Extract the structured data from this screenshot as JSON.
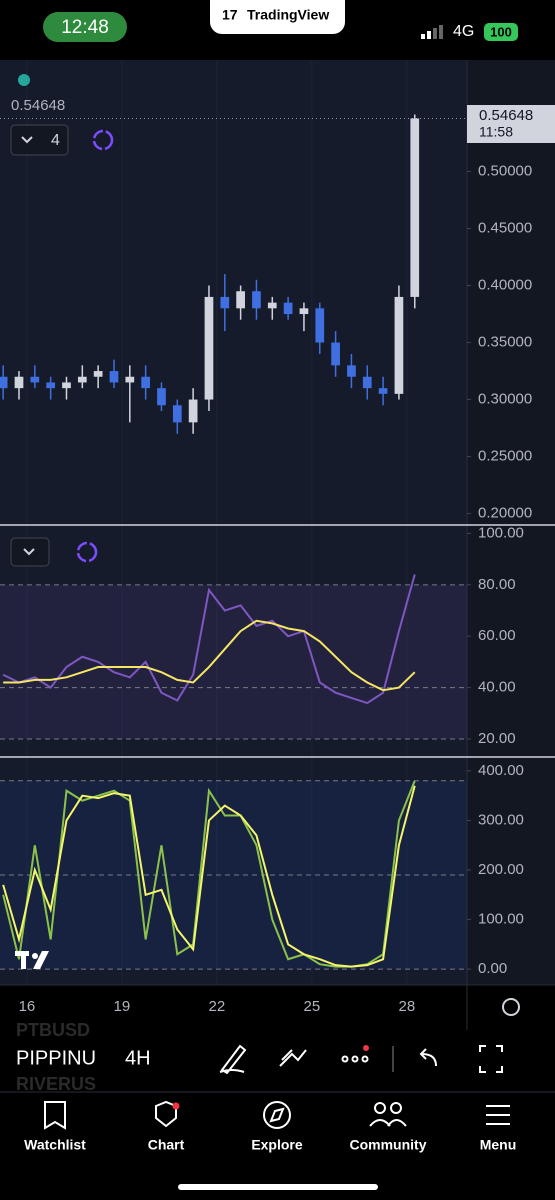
{
  "status": {
    "time": "12:48",
    "brand": "TradingView",
    "network": "4G",
    "battery": "100"
  },
  "chart_data": [
    {
      "type": "candlestick",
      "last_price": 0.54648,
      "countdown": "11:58",
      "interval_count": 4,
      "x": [
        15.25,
        15.75,
        16.25,
        16.75,
        17.25,
        17.75,
        18.25,
        18.75,
        19.25,
        19.75,
        20.25,
        20.75,
        21.25,
        21.75,
        22.25,
        22.75,
        23.25,
        23.75,
        24.25,
        24.75,
        25.25,
        25.75,
        26.25,
        26.75,
        27.25,
        27.75,
        28.25
      ],
      "open": [
        0.32,
        0.31,
        0.32,
        0.315,
        0.31,
        0.315,
        0.32,
        0.325,
        0.315,
        0.32,
        0.31,
        0.295,
        0.28,
        0.3,
        0.39,
        0.38,
        0.395,
        0.38,
        0.385,
        0.375,
        0.38,
        0.35,
        0.33,
        0.32,
        0.31,
        0.305,
        0.39
      ],
      "high": [
        0.33,
        0.325,
        0.33,
        0.32,
        0.32,
        0.33,
        0.33,
        0.335,
        0.33,
        0.33,
        0.315,
        0.3,
        0.31,
        0.4,
        0.41,
        0.4,
        0.405,
        0.39,
        0.39,
        0.385,
        0.385,
        0.36,
        0.34,
        0.33,
        0.32,
        0.4,
        0.55
      ],
      "low": [
        0.3,
        0.3,
        0.31,
        0.3,
        0.3,
        0.31,
        0.31,
        0.31,
        0.28,
        0.3,
        0.29,
        0.27,
        0.27,
        0.29,
        0.36,
        0.37,
        0.37,
        0.37,
        0.37,
        0.36,
        0.34,
        0.32,
        0.31,
        0.3,
        0.295,
        0.3,
        0.38
      ],
      "close": [
        0.31,
        0.32,
        0.315,
        0.31,
        0.315,
        0.32,
        0.325,
        0.315,
        0.32,
        0.31,
        0.295,
        0.28,
        0.3,
        0.39,
        0.38,
        0.395,
        0.38,
        0.385,
        0.375,
        0.38,
        0.35,
        0.33,
        0.32,
        0.31,
        0.305,
        0.39,
        0.54648
      ],
      "up_color": "#d1d4dc",
      "down_color": "#3f6fe0",
      "xlim": [
        15.15,
        29.9
      ],
      "xticks": [
        16,
        19,
        22,
        25,
        28
      ],
      "ylim": [
        0.19,
        0.596
      ],
      "yticks": [
        {
          "value": 0.5,
          "label": "0.50000"
        },
        {
          "value": 0.45,
          "label": "0.45000"
        },
        {
          "value": 0.4,
          "label": "0.40000"
        },
        {
          "value": 0.35,
          "label": "0.35000"
        },
        {
          "value": 0.3,
          "label": "0.30000"
        },
        {
          "value": 0.25,
          "label": "0.25000"
        },
        {
          "value": 0.2,
          "label": "0.20000"
        }
      ],
      "grid": true
    },
    {
      "type": "line",
      "x": [
        15.25,
        15.75,
        16.25,
        16.75,
        17.25,
        17.75,
        18.25,
        18.75,
        19.25,
        19.75,
        20.25,
        20.75,
        21.25,
        21.75,
        22.25,
        22.75,
        23.25,
        23.75,
        24.25,
        24.75,
        25.25,
        25.75,
        26.25,
        26.75,
        27.25,
        27.75,
        28.25
      ],
      "series": [
        {
          "color": "#7e57c2",
          "values": [
            45,
            42,
            44,
            40,
            48,
            52,
            50,
            46,
            44,
            50,
            38,
            35,
            45,
            78,
            70,
            72,
            64,
            66,
            60,
            62,
            42,
            38,
            36,
            34,
            38,
            62,
            84
          ]
        },
        {
          "color": "#f5e663",
          "values": [
            42,
            42,
            43,
            43,
            44,
            46,
            48,
            48,
            48,
            48,
            46,
            43,
            42,
            48,
            55,
            62,
            66,
            65,
            63,
            62,
            58,
            52,
            46,
            42,
            39,
            40,
            46
          ]
        }
      ],
      "ylim": [
        13,
        102.5
      ],
      "yticks": [
        {
          "value": 100,
          "label": "100.00"
        },
        {
          "value": 80,
          "label": "80.00"
        },
        {
          "value": 60,
          "label": "60.00"
        },
        {
          "value": 40,
          "label": "40.00"
        },
        {
          "value": 20,
          "label": "20.00"
        }
      ],
      "band_levels": [
        80,
        40,
        20
      ],
      "band_color": "rgba(126,87,194,0.13)"
    },
    {
      "type": "line",
      "x": [
        15.25,
        15.75,
        16.25,
        16.75,
        17.25,
        17.75,
        18.25,
        18.75,
        19.25,
        19.75,
        20.25,
        20.75,
        21.25,
        21.75,
        22.25,
        22.75,
        23.25,
        23.75,
        24.25,
        24.75,
        25.25,
        25.75,
        26.25,
        26.75,
        27.25,
        27.75,
        28.25
      ],
      "series": [
        {
          "color": "#8bc34a",
          "values": [
            150,
            20,
            250,
            60,
            360,
            340,
            350,
            360,
            340,
            60,
            250,
            30,
            50,
            360,
            310,
            310,
            250,
            100,
            20,
            30,
            10,
            5,
            5,
            10,
            30,
            300,
            380
          ]
        },
        {
          "color": "#f5f56b",
          "values": [
            170,
            60,
            200,
            120,
            300,
            350,
            345,
            355,
            350,
            150,
            160,
            80,
            40,
            300,
            330,
            310,
            270,
            150,
            50,
            30,
            20,
            8,
            5,
            8,
            20,
            250,
            370
          ]
        }
      ],
      "ylim": [
        -32,
        424
      ],
      "yticks": [
        {
          "value": 400,
          "label": "400.00"
        },
        {
          "value": 300,
          "label": "300.00"
        },
        {
          "value": 200,
          "label": "200.00"
        },
        {
          "value": 100,
          "label": "100.00"
        },
        {
          "value": 0,
          "label": "0.00"
        }
      ],
      "band_levels": [
        380,
        190,
        0
      ],
      "band_color": "rgba(41,98,255,0.10)"
    }
  ],
  "toolbar": {
    "symbol": "PIPPINU",
    "interval": "4H",
    "ghost_above": "PTBUSD",
    "ghost_below": "RIVERUS"
  },
  "nav": [
    "Watchlist",
    "Chart",
    "Explore",
    "Community",
    "Menu"
  ]
}
